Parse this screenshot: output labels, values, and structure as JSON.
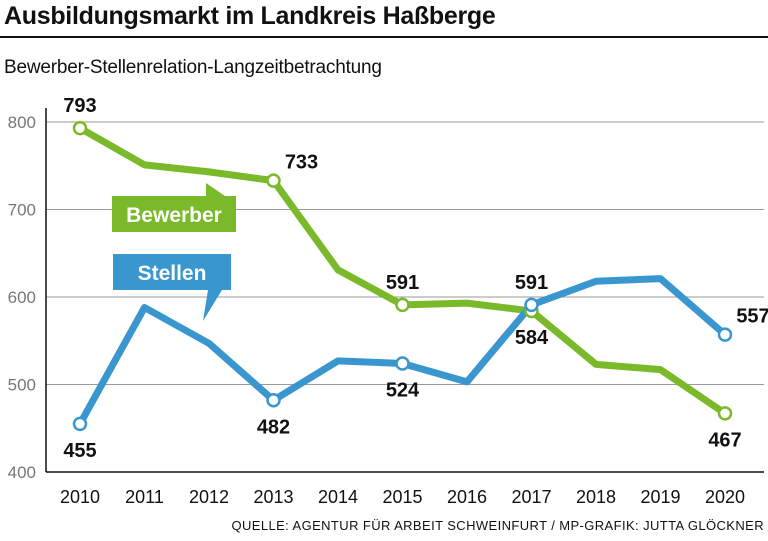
{
  "header": {
    "title": "Ausbildungsmarkt im Landkreis Haßberge",
    "subtitle": "Bewerber-Stellenrelation-Langzeitbetrachtung"
  },
  "footer": {
    "source": "QUELLE: AGENTUR FÜR ARBEIT SCHWEINFURT / MP-GRAFIK: JUTTA GLÖCKNER"
  },
  "chart_data": {
    "type": "line",
    "title": "Ausbildungsmarkt im Landkreis Haßberge",
    "subtitle": "Bewerber-Stellenrelation-Langzeitbetrachtung",
    "xlabel": "",
    "ylabel": "",
    "ylim": [
      400,
      800
    ],
    "yticks": [
      400,
      500,
      600,
      700,
      800
    ],
    "grid": true,
    "categories": [
      "2010",
      "2011",
      "2012",
      "2013",
      "2014",
      "2015",
      "2016",
      "2017",
      "2018",
      "2019",
      "2020"
    ],
    "series": [
      {
        "name": "Bewerber",
        "color": "#7ab929",
        "values": [
          793,
          751,
          743,
          733,
          631,
          591,
          593,
          584,
          523,
          517,
          467
        ],
        "labeled": [
          {
            "index": 0,
            "text": "793",
            "pos": "above"
          },
          {
            "index": 3,
            "text": "733",
            "pos": "above-right"
          },
          {
            "index": 5,
            "text": "591",
            "pos": "above"
          },
          {
            "index": 7,
            "text": "584",
            "pos": "below"
          },
          {
            "index": 10,
            "text": "467",
            "pos": "below"
          }
        ]
      },
      {
        "name": "Stellen",
        "color": "#3a96cf",
        "values": [
          455,
          588,
          547,
          482,
          527,
          524,
          503,
          591,
          618,
          621,
          557
        ],
        "labeled": [
          {
            "index": 0,
            "text": "455",
            "pos": "below"
          },
          {
            "index": 3,
            "text": "482",
            "pos": "below"
          },
          {
            "index": 5,
            "text": "524",
            "pos": "below"
          },
          {
            "index": 7,
            "text": "591",
            "pos": "above"
          },
          {
            "index": 10,
            "text": "557",
            "pos": "above-right"
          }
        ]
      }
    ]
  }
}
